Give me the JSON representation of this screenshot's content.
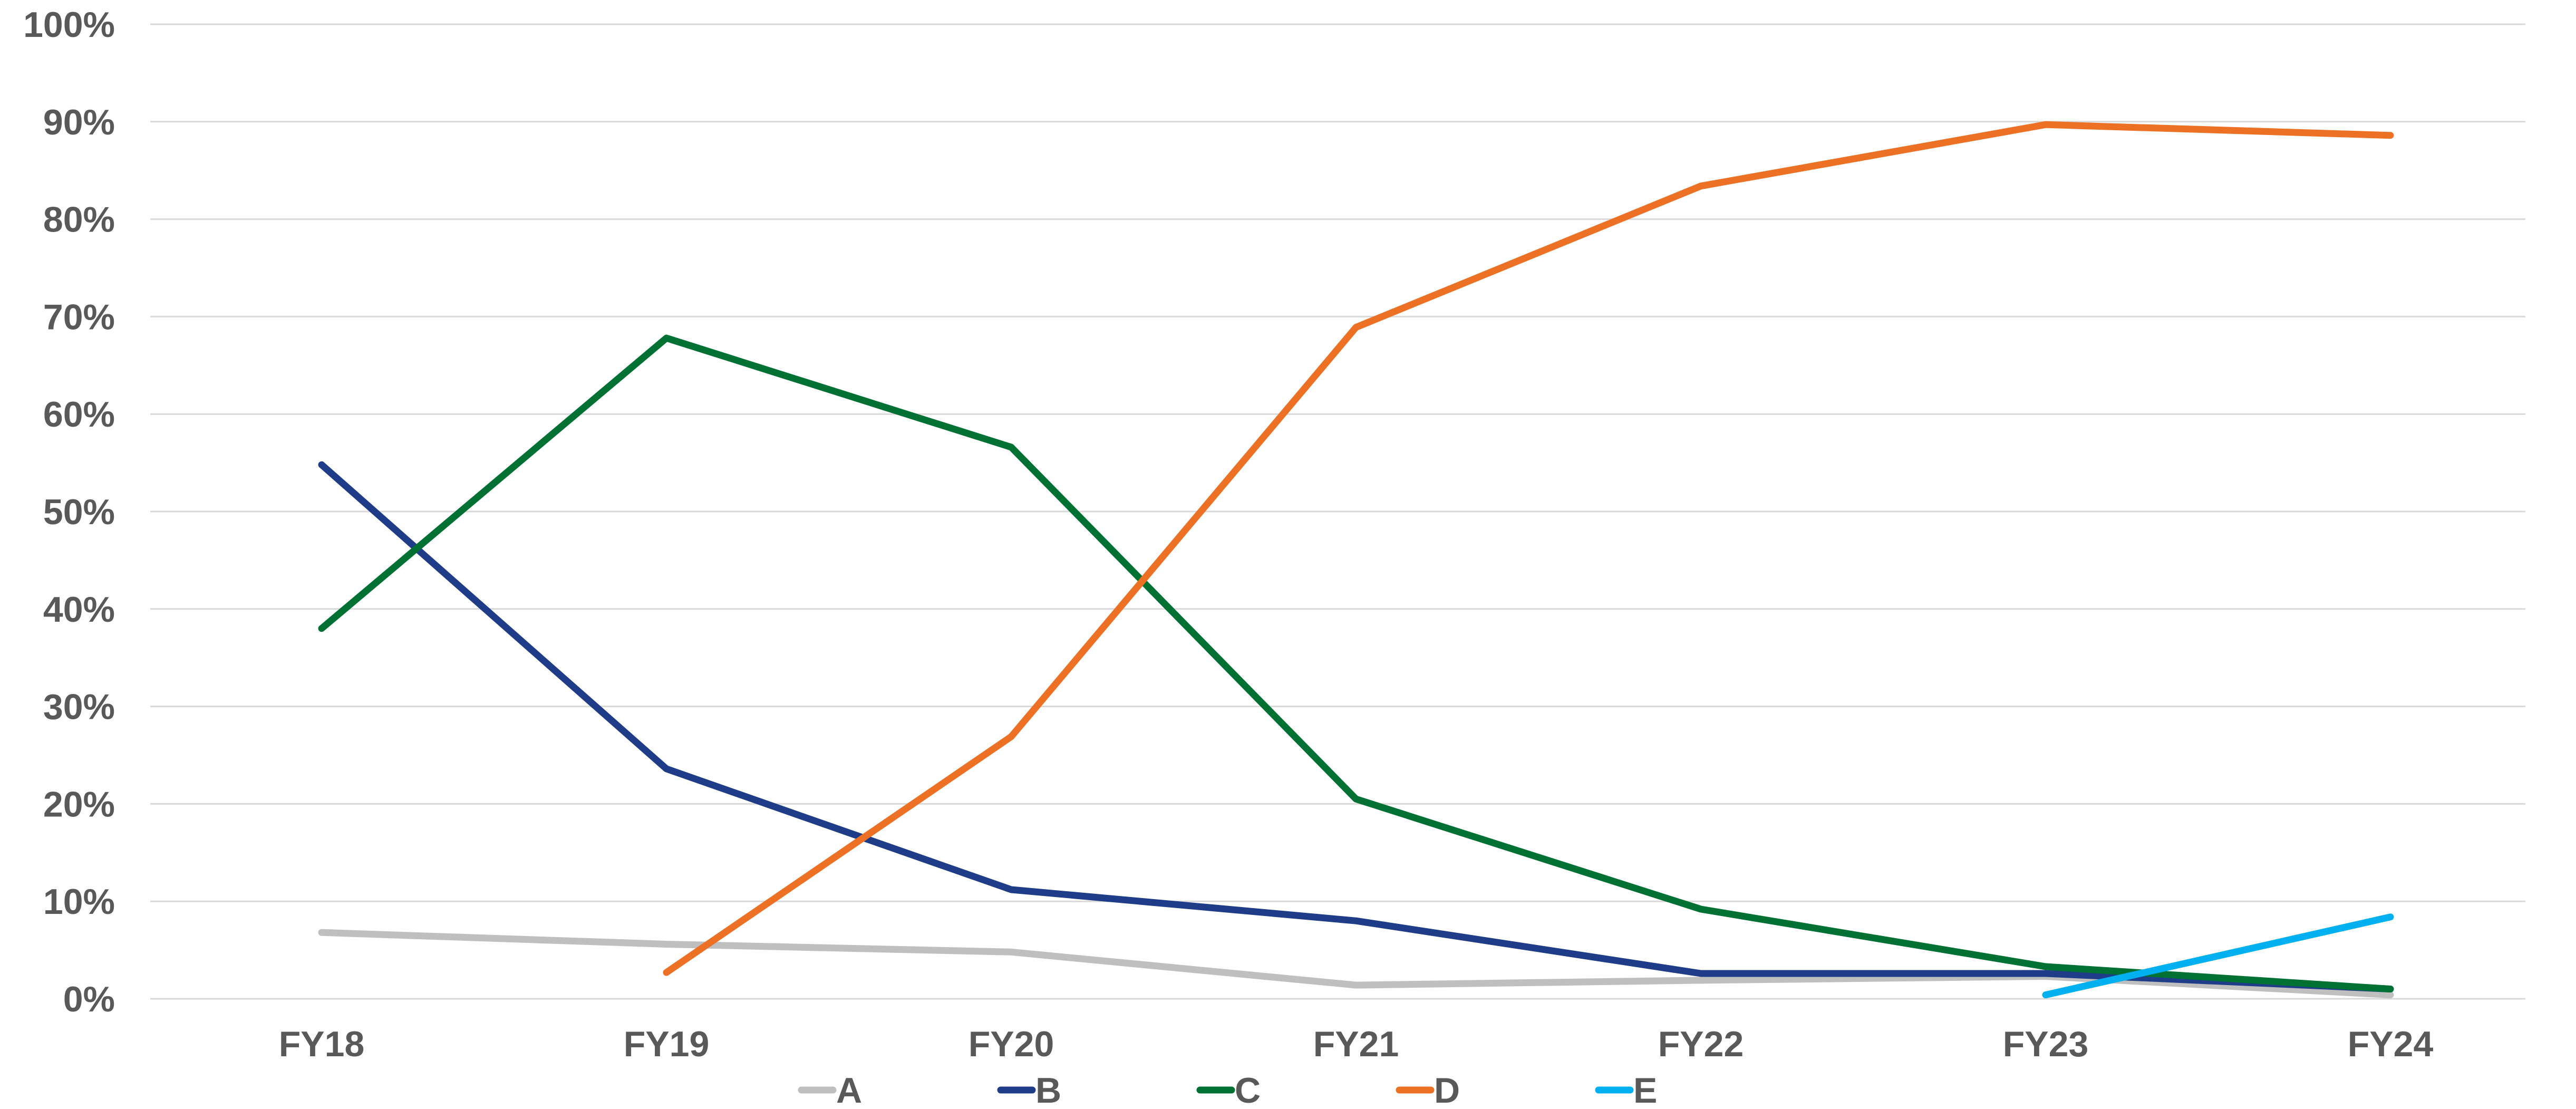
{
  "chart_data": {
    "type": "line",
    "title": "",
    "xlabel": "",
    "ylabel": "",
    "categories": [
      "FY18",
      "FY19",
      "FY20",
      "FY21",
      "FY22",
      "FY23",
      "FY24"
    ],
    "ylim": [
      0,
      100
    ],
    "y_ticks": [
      "0%",
      "10%",
      "20%",
      "30%",
      "40%",
      "50%",
      "60%",
      "70%",
      "80%",
      "90%",
      "100%"
    ],
    "grid": true,
    "legend_position": "bottom",
    "series": [
      {
        "name": "A",
        "color": "#bfbfbf",
        "values": [
          6.8,
          5.6,
          4.8,
          1.4,
          1.9,
          2.3,
          0.4
        ]
      },
      {
        "name": "B",
        "color": "#1f3c88",
        "values": [
          54.8,
          23.6,
          11.2,
          8.0,
          2.6,
          2.6,
          1.0
        ]
      },
      {
        "name": "C",
        "color": "#007033",
        "values": [
          38.0,
          67.8,
          56.6,
          20.5,
          9.2,
          3.3,
          1.0
        ]
      },
      {
        "name": "D",
        "color": "#ed7125",
        "values": [
          null,
          2.7,
          26.9,
          68.9,
          83.4,
          89.7,
          88.6
        ]
      },
      {
        "name": "E",
        "color": "#00b0f0",
        "values": [
          null,
          null,
          null,
          null,
          null,
          0.4,
          8.4
        ]
      }
    ]
  }
}
